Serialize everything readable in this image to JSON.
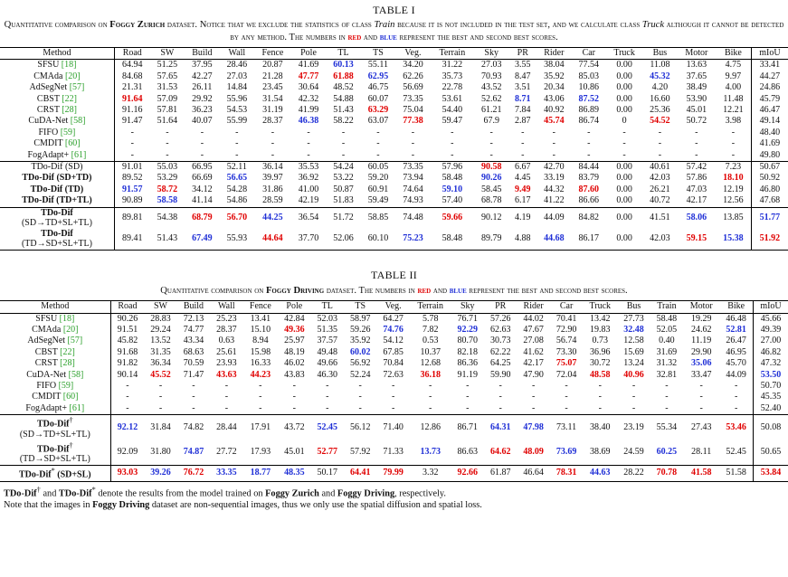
{
  "table1": {
    "label": "TABLE I",
    "caption": {
      "p1": "Quantitative comparison on ",
      "dataset": "Foggy Zurich",
      "p2": " dataset. Notice that we exclude the statistics of class ",
      "cls1": "Train",
      "p3": " because it is not included in the test set, and we calculate class ",
      "cls2": "Truck",
      "p4": " although it cannot be detected by any method. The numbers in ",
      "red": "red",
      "p5": " and ",
      "blue": "blue",
      "p6": " represent the best and second best scores."
    },
    "columns": [
      "Method",
      "Road",
      "SW",
      "Build",
      "Wall",
      "Fence",
      "Pole",
      "TL",
      "TS",
      "Veg.",
      "Terrain",
      "Sky",
      "PR",
      "Rider",
      "Car",
      "Truck",
      "Bus",
      "Motor",
      "Bike",
      "mIoU"
    ],
    "group1": [
      {
        "name": "SFSU",
        "ref": "[18]",
        "cells": [
          "64.94",
          "51.25",
          "37.95",
          "28.46",
          "20.87",
          "41.69",
          "60.13",
          "55.11",
          "34.20",
          "31.22",
          "27.03",
          "3.55",
          "38.04",
          "77.54",
          "0.00",
          "11.08",
          "13.63",
          "4.75",
          "33.41"
        ],
        "marks": {
          "7": "b"
        }
      },
      {
        "name": "CMAda",
        "ref": "[20]",
        "cells": [
          "84.68",
          "57.65",
          "42.27",
          "27.03",
          "21.28",
          "47.77",
          "61.88",
          "62.95",
          "62.26",
          "35.73",
          "70.93",
          "8.47",
          "35.92",
          "85.03",
          "0.00",
          "45.32",
          "37.65",
          "9.97",
          "44.27"
        ],
        "marks": {
          "6": "r",
          "7": "r",
          "8": "b",
          "16": "b"
        }
      },
      {
        "name": "AdSegNet",
        "ref": "[57]",
        "cells": [
          "21.31",
          "31.53",
          "26.11",
          "14.84",
          "23.45",
          "30.64",
          "48.52",
          "46.75",
          "56.69",
          "22.78",
          "43.52",
          "3.51",
          "20.34",
          "10.86",
          "0.00",
          "4.20",
          "38.49",
          "4.00",
          "24.86"
        ],
        "marks": {}
      },
      {
        "name": "CBST",
        "ref": "[22]",
        "cells": [
          "91.64",
          "57.09",
          "29.92",
          "55.96",
          "31.54",
          "42.32",
          "54.88",
          "60.07",
          "73.35",
          "53.61",
          "52.62",
          "8.71",
          "43.06",
          "87.52",
          "0.00",
          "16.60",
          "53.90",
          "11.48",
          "45.79"
        ],
        "marks": {
          "1": "r",
          "12": "b",
          "14": "b"
        }
      },
      {
        "name": "CRST",
        "ref": "[28]",
        "cells": [
          "91.16",
          "57.81",
          "36.23",
          "54.53",
          "31.19",
          "41.99",
          "51.43",
          "63.29",
          "75.04",
          "54.40",
          "61.21",
          "7.84",
          "40.92",
          "86.89",
          "0.00",
          "25.36",
          "45.01",
          "12.21",
          "46.47"
        ],
        "marks": {
          "8": "r"
        }
      },
      {
        "name": "CuDA-Net",
        "ref": "[58]",
        "cells": [
          "91.47",
          "51.64",
          "40.07",
          "55.99",
          "28.37",
          "46.38",
          "58.22",
          "63.07",
          "77.38",
          "59.47",
          "67.9",
          "2.87",
          "45.74",
          "86.74",
          "0",
          "54.52",
          "50.72",
          "3.98",
          "49.14"
        ],
        "marks": {
          "6": "b",
          "9": "r",
          "13": "r",
          "16": "r"
        }
      },
      {
        "name": "FIFO",
        "ref": "[59]",
        "cells": [
          "-",
          "-",
          "-",
          "-",
          "-",
          "-",
          "-",
          "-",
          "-",
          "-",
          "-",
          "-",
          "-",
          "-",
          "-",
          "-",
          "-",
          "-",
          "48.40"
        ],
        "marks": {}
      },
      {
        "name": "CMDIT",
        "ref": "[60]",
        "cells": [
          "-",
          "-",
          "-",
          "-",
          "-",
          "-",
          "-",
          "-",
          "-",
          "-",
          "-",
          "-",
          "-",
          "-",
          "-",
          "-",
          "-",
          "-",
          "41.69"
        ],
        "marks": {}
      },
      {
        "name": "FogAdapt+",
        "ref": "[61]",
        "cells": [
          "-",
          "-",
          "-",
          "-",
          "-",
          "-",
          "-",
          "-",
          "-",
          "-",
          "-",
          "-",
          "-",
          "-",
          "-",
          "-",
          "-",
          "-",
          "49.80"
        ],
        "marks": {}
      }
    ],
    "group2": [
      {
        "name": "TDo-Dif (SD)",
        "bold": false,
        "cells": [
          "91.01",
          "55.03",
          "66.95",
          "52.11",
          "36.14",
          "35.53",
          "54.24",
          "60.05",
          "73.35",
          "57.96",
          "90.58",
          "6.67",
          "42.70",
          "84.44",
          "0.00",
          "40.61",
          "57.42",
          "7.23",
          "50.67"
        ],
        "marks": {
          "11": "r"
        }
      },
      {
        "name": "TDo-Dif (SD+TD)",
        "bold": true,
        "cells": [
          "89.52",
          "53.29",
          "66.69",
          "56.65",
          "39.97",
          "36.92",
          "53.22",
          "59.20",
          "73.94",
          "58.48",
          "90.26",
          "4.45",
          "33.19",
          "83.79",
          "0.00",
          "42.03",
          "57.86",
          "18.10",
          "50.92"
        ],
        "marks": {
          "4": "b",
          "11": "b",
          "18": "r"
        }
      },
      {
        "name": "TDo-Dif (TD)",
        "bold": true,
        "cells": [
          "91.57",
          "58.72",
          "34.12",
          "54.28",
          "31.86",
          "41.00",
          "50.87",
          "60.91",
          "74.64",
          "59.10",
          "58.45",
          "9.49",
          "44.32",
          "87.60",
          "0.00",
          "26.21",
          "47.03",
          "12.19",
          "46.80"
        ],
        "marks": {
          "1": "b",
          "2": "r",
          "10": "b",
          "12": "r",
          "14": "r"
        }
      },
      {
        "name": "TDo-Dif (TD+TL)",
        "bold": true,
        "cells": [
          "90.89",
          "58.58",
          "41.14",
          "54.86",
          "28.59",
          "42.19",
          "51.83",
          "59.49",
          "74.93",
          "57.40",
          "68.78",
          "6.17",
          "41.22",
          "86.66",
          "0.00",
          "40.72",
          "42.17",
          "12.56",
          "47.68"
        ],
        "marks": {
          "2": "b"
        }
      }
    ],
    "group3": [
      {
        "line1": "TDo-Dif",
        "line2": "(SD→TD+SL+TL)",
        "cells": [
          "89.81",
          "54.38",
          "68.79",
          "56.70",
          "44.25",
          "36.54",
          "51.72",
          "58.85",
          "74.48",
          "59.66",
          "90.12",
          "4.19",
          "44.09",
          "84.82",
          "0.00",
          "41.51",
          "58.06",
          "13.85",
          "51.77"
        ],
        "marks": {
          "3": "r",
          "4": "r",
          "5": "b",
          "10": "r",
          "17": "b",
          "19": "b"
        }
      },
      {
        "line1": "TDo-Dif",
        "line2": "(TD→SD+SL+TL)",
        "cells": [
          "89.41",
          "51.43",
          "67.49",
          "55.93",
          "44.64",
          "37.70",
          "52.06",
          "60.10",
          "75.23",
          "58.48",
          "89.79",
          "4.88",
          "44.68",
          "86.17",
          "0.00",
          "42.03",
          "59.15",
          "15.38",
          "51.92"
        ],
        "marks": {
          "3": "b",
          "5": "r",
          "9": "b",
          "13": "b",
          "17": "r",
          "18": "b",
          "19": "r"
        }
      }
    ]
  },
  "table2": {
    "label": "TABLE II",
    "caption": {
      "p1": "Quantitative comparison on ",
      "dataset": "Foggy Driving",
      "p2": " dataset. The numbers in ",
      "red": "red",
      "p3": " and ",
      "blue": "blue",
      "p4": " represent the best and second best scores."
    },
    "columns": [
      "Method",
      "Road",
      "SW",
      "Build",
      "Wall",
      "Fence",
      "Pole",
      "TL",
      "TS",
      "Veg.",
      "Terrain",
      "Sky",
      "PR",
      "Rider",
      "Car",
      "Truck",
      "Bus",
      "Train",
      "Motor",
      "Bike",
      "mIoU"
    ],
    "group1": [
      {
        "name": "SFSU",
        "ref": "[18]",
        "cells": [
          "90.26",
          "28.83",
          "72.13",
          "25.23",
          "13.41",
          "42.84",
          "52.03",
          "58.97",
          "64.27",
          "5.78",
          "76.71",
          "57.26",
          "44.02",
          "70.41",
          "13.42",
          "27.73",
          "58.48",
          "19.29",
          "46.48",
          "45.66"
        ],
        "marks": {}
      },
      {
        "name": "CMAda",
        "ref": "[20]",
        "cells": [
          "91.51",
          "29.24",
          "74.77",
          "28.37",
          "15.10",
          "49.36",
          "51.35",
          "59.26",
          "74.76",
          "7.82",
          "92.29",
          "62.63",
          "47.67",
          "72.90",
          "19.83",
          "32.48",
          "52.05",
          "24.62",
          "52.81",
          "49.39"
        ],
        "marks": {
          "6": "r",
          "9": "b",
          "11": "b",
          "16": "b",
          "19": "b"
        }
      },
      {
        "name": "AdSegNet",
        "ref": "[57]",
        "cells": [
          "45.82",
          "13.52",
          "43.34",
          "0.63",
          "8.94",
          "25.97",
          "37.57",
          "35.92",
          "54.12",
          "0.53",
          "80.70",
          "30.73",
          "27.08",
          "56.74",
          "0.73",
          "12.58",
          "0.40",
          "11.19",
          "26.47",
          "27.00"
        ],
        "marks": {}
      },
      {
        "name": "CBST",
        "ref": "[22]",
        "cells": [
          "91.68",
          "31.35",
          "68.63",
          "25.61",
          "15.98",
          "48.19",
          "49.48",
          "60.02",
          "67.85",
          "10.37",
          "82.18",
          "62.22",
          "41.62",
          "73.30",
          "36.96",
          "15.69",
          "31.69",
          "29.90",
          "46.95",
          "46.82"
        ],
        "marks": {
          "8": "b"
        }
      },
      {
        "name": "CRST",
        "ref": "[28]",
        "cells": [
          "91.82",
          "36.34",
          "70.59",
          "23.93",
          "16.33",
          "46.02",
          "49.66",
          "56.92",
          "70.84",
          "12.68",
          "86.36",
          "64.25",
          "42.17",
          "75.07",
          "30.72",
          "13.24",
          "31.32",
          "35.06",
          "45.70",
          "47.32"
        ],
        "marks": {
          "14": "r",
          "18": "b"
        }
      },
      {
        "name": "CuDA-Net",
        "ref": "[58]",
        "cells": [
          "90.14",
          "45.52",
          "71.47",
          "43.63",
          "44.23",
          "43.83",
          "46.30",
          "52.24",
          "72.63",
          "36.18",
          "91.19",
          "59.90",
          "47.90",
          "72.04",
          "48.58",
          "40.96",
          "32.81",
          "33.47",
          "44.09",
          "53.50"
        ],
        "marks": {
          "2": "r",
          "4": "r",
          "5": "r",
          "10": "r",
          "15": "r",
          "16": "r",
          "20": "b"
        }
      },
      {
        "name": "FIFO",
        "ref": "[59]",
        "cells": [
          "-",
          "-",
          "-",
          "-",
          "-",
          "-",
          "-",
          "-",
          "-",
          "-",
          "-",
          "-",
          "-",
          "-",
          "-",
          "-",
          "-",
          "-",
          "-",
          "50.70"
        ],
        "marks": {}
      },
      {
        "name": "CMDIT",
        "ref": "[60]",
        "cells": [
          "-",
          "-",
          "-",
          "-",
          "-",
          "-",
          "-",
          "-",
          "-",
          "-",
          "-",
          "-",
          "-",
          "-",
          "-",
          "-",
          "-",
          "-",
          "-",
          "45.35"
        ],
        "marks": {}
      },
      {
        "name": "FogAdapt+",
        "ref": "[61]",
        "cells": [
          "-",
          "-",
          "-",
          "-",
          "-",
          "-",
          "-",
          "-",
          "-",
          "-",
          "-",
          "-",
          "-",
          "-",
          "-",
          "-",
          "-",
          "-",
          "-",
          "52.40"
        ],
        "marks": {}
      }
    ],
    "group2": [
      {
        "line1": "TDo-Dif",
        "sup": "†",
        "line2": "(SD→TD+SL+TL)",
        "cells": [
          "92.12",
          "31.84",
          "74.82",
          "28.44",
          "17.91",
          "43.72",
          "52.45",
          "56.12",
          "71.40",
          "12.86",
          "86.71",
          "64.31",
          "47.98",
          "73.11",
          "38.40",
          "23.19",
          "55.34",
          "27.43",
          "53.46",
          "50.08"
        ],
        "marks": {
          "1": "b",
          "7": "b",
          "12": "b",
          "13": "b",
          "19": "r"
        }
      },
      {
        "line1": "TDo-Dif",
        "sup": "†",
        "line2": "(TD→SD+SL+TL)",
        "cells": [
          "92.09",
          "31.80",
          "74.87",
          "27.72",
          "17.93",
          "45.01",
          "52.77",
          "57.92",
          "71.33",
          "13.73",
          "86.63",
          "64.62",
          "48.09",
          "73.69",
          "38.69",
          "24.59",
          "60.25",
          "28.11",
          "52.45",
          "50.65"
        ],
        "marks": {
          "3": "b",
          "7": "r",
          "10": "b",
          "12": "r",
          "13": "r",
          "14": "b",
          "17": "b"
        }
      }
    ],
    "group3": [
      {
        "name": "TDo-Dif",
        "sup": "*",
        "suffix": " (SD+SL)",
        "cells": [
          "93.03",
          "39.26",
          "76.72",
          "33.35",
          "18.77",
          "48.35",
          "50.17",
          "64.41",
          "79.99",
          "3.32",
          "92.66",
          "61.87",
          "46.64",
          "78.31",
          "44.63",
          "28.22",
          "70.78",
          "41.58",
          "51.58",
          "53.84"
        ],
        "marks": {
          "1": "r",
          "2": "b",
          "3": "r",
          "4": "b",
          "5": "b",
          "6": "b",
          "8": "r",
          "9": "r",
          "11": "r",
          "14": "r",
          "15": "b",
          "17": "r",
          "18": "r",
          "20": "r"
        }
      }
    ]
  },
  "notes": {
    "line1_a": "TDo-Dif",
    "sup1": "†",
    "line1_b": " and ",
    "line1_c": "TDo-Dif",
    "sup2": "*",
    "line1_d": " denote the results from the model trained on ",
    "line1_e": "Foggy Zurich",
    "line1_f": " and ",
    "line1_g": "Foggy Driving",
    "line1_h": ", respectively.",
    "line2_a": "Note that the images in ",
    "line2_b": "Foggy Driving",
    "line2_c": " dataset are non-sequential images, thus we only use the spatial diffusion and spatial loss."
  },
  "colors": {
    "best": "#e00000",
    "second": "#1f2fd6",
    "ref": "#2ba02b"
  }
}
